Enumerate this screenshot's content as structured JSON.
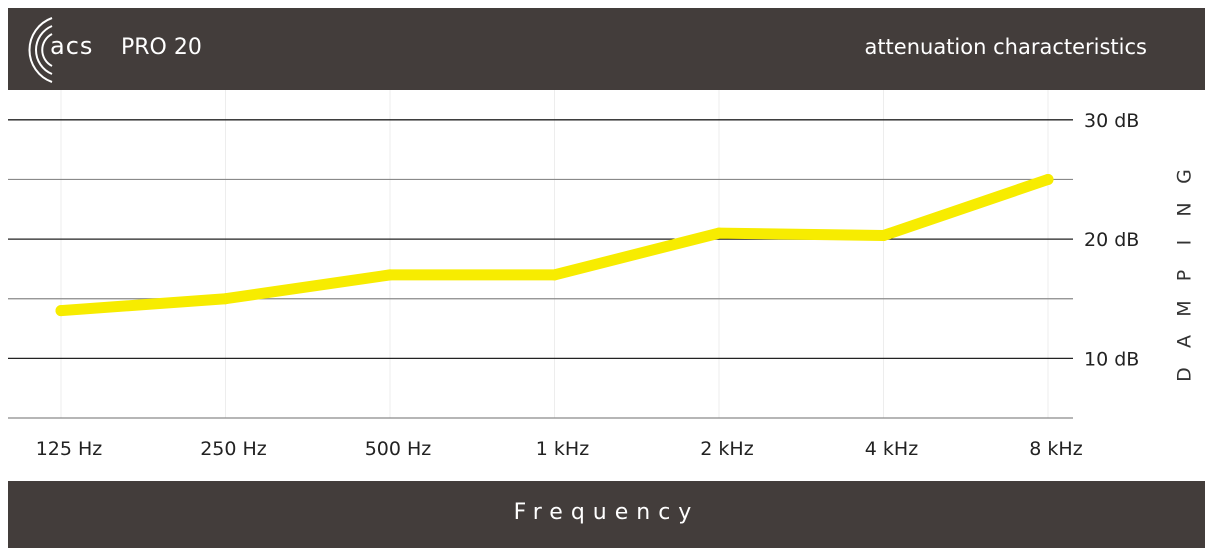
{
  "header": {
    "brand": "acs",
    "model": "PRO 20",
    "subtitle": "attenuation characteristics"
  },
  "footer": {
    "xlabel": "Frequency"
  },
  "colors": {
    "bar": "#433d3b",
    "line": "#f7ec00",
    "grid": "#8a8a8a",
    "gridMajor": "#222222",
    "text": "#222222"
  },
  "chart_data": {
    "type": "line",
    "title": "attenuation characteristics",
    "xlabel": "Frequency",
    "ylabel": "DAMPING",
    "categories": [
      "125 Hz",
      "250 Hz",
      "500 Hz",
      "1 kHz",
      "2 kHz",
      "4 kHz",
      "8 kHz"
    ],
    "series": [
      {
        "values": [
          14,
          15,
          17,
          17,
          20.5,
          20.3,
          25
        ]
      }
    ],
    "ylim": [
      5,
      32.5
    ],
    "yticks": [
      {
        "value": 10,
        "label": "10 dB"
      },
      {
        "value": 20,
        "label": "20 dB"
      },
      {
        "value": 30,
        "label": "30 dB"
      }
    ],
    "minor_gridlines": [
      5,
      15,
      25
    ],
    "grid": true,
    "ylabel_letters": [
      "D",
      "A",
      "M",
      "P",
      "I",
      "N",
      "G"
    ]
  }
}
